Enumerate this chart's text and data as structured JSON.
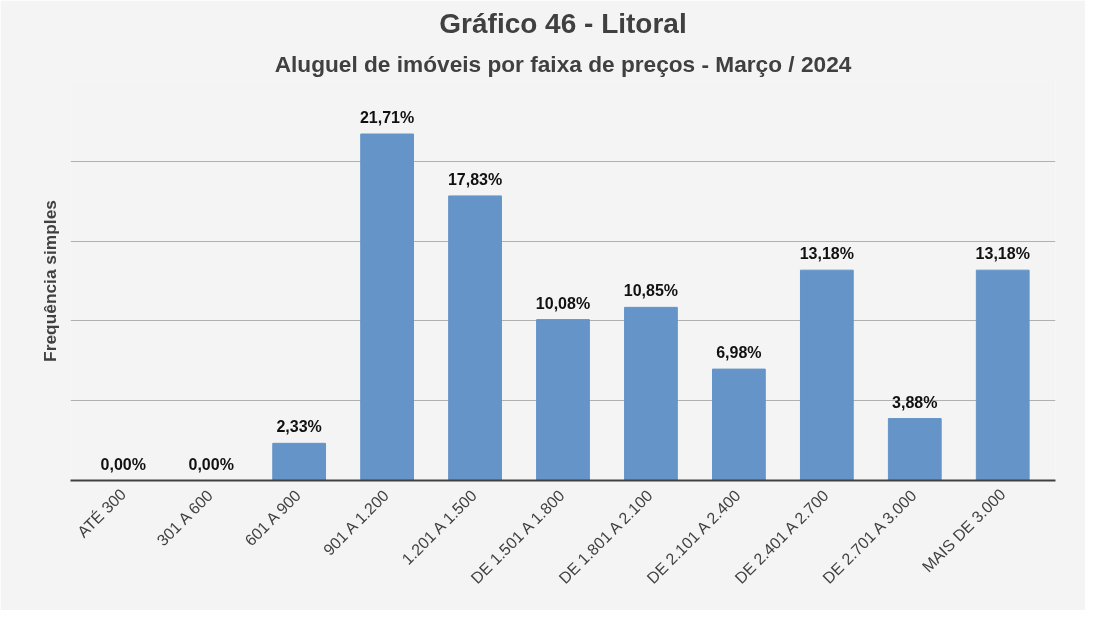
{
  "chart_data": {
    "type": "bar",
    "title": "Gráfico 46 - Litoral",
    "subtitle": "Aluguel de imóveis por faixa de preços - Março / 2024",
    "ylabel": "Frequência simples",
    "categories": [
      "ATÉ 300",
      "301 A 600",
      "601 A 900",
      "901 A 1.200",
      "1.201 A 1.500",
      "DE 1.501 A 1.800",
      "DE 1.801 A 2.100",
      "DE 2.101 A 2.400",
      "DE 2.401 A 2.700",
      "DE 2.701 A 3.000",
      "MAIS DE 3.000"
    ],
    "values": [
      0,
      0,
      2.33,
      21.71,
      17.83,
      10.08,
      10.85,
      6.98,
      13.18,
      3.88,
      13.18
    ],
    "value_labels": [
      "0,00%",
      "0,00%",
      "2,33%",
      "21,71%",
      "17,83%",
      "10,08%",
      "10,85%",
      "6,98%",
      "13,18%",
      "3,88%",
      "13,18%"
    ],
    "color": "#6594c8",
    "ylim": [
      0,
      25
    ],
    "yticks": [
      {
        "value": 0,
        "label": null
      },
      {
        "value": 5,
        "label": null
      },
      {
        "value": 10,
        "label": null
      },
      {
        "value": 15,
        "label": null
      },
      {
        "value": 20,
        "label": null
      },
      {
        "value": 25,
        "label": null
      }
    ],
    "tick_labels": "x",
    "grid": "y"
  }
}
